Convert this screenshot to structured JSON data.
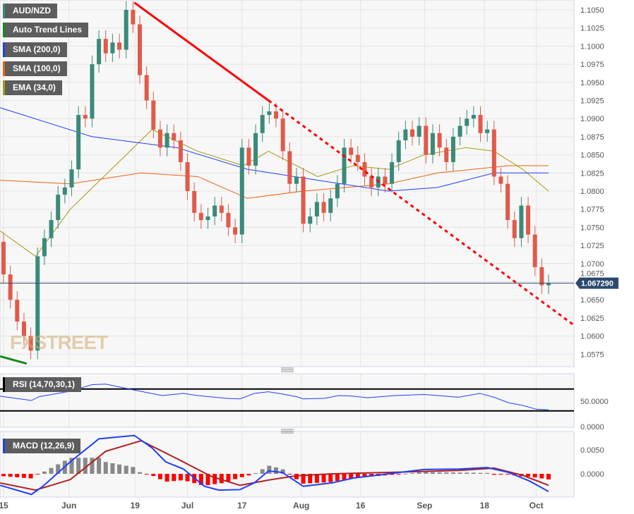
{
  "legend": {
    "symbol": {
      "label": "AUD/NZD",
      "color": "#3a8a7a"
    },
    "trend": {
      "label": "Auto Trend Lines",
      "color": "#1a8a1a"
    },
    "sma200": {
      "label": "SMA (200,0)",
      "color": "#1f3fff"
    },
    "sma100": {
      "label": "SMA (100,0)",
      "color": "#f06010"
    },
    "ema34": {
      "label": "EMA (34,0)",
      "color": "#a89a10"
    },
    "rsi": {
      "label": "RSI (14,70,30,1)",
      "color": "#000000"
    },
    "macd": {
      "label": "MACD (12,26,9)",
      "color": "#1f3fff"
    }
  },
  "watermark": "FXSTREET",
  "chart_data": {
    "type": "candlestick",
    "symbol": "AUD/NZD",
    "current_price": "1.067290",
    "current_value": 1.06729,
    "price_ticks": [
      "1.1050",
      "1.1025",
      "1.1000",
      "1.0975",
      "1.0950",
      "1.0925",
      "1.0900",
      "1.0875",
      "1.0850",
      "1.0825",
      "1.0800",
      "1.0775",
      "1.0750",
      "1.0725",
      "1.0700",
      "1.0675",
      "1.0650",
      "1.0625",
      "1.0600",
      "1.0575"
    ],
    "ylim": [
      1.0555,
      1.1065
    ],
    "x_labels": [
      {
        "t": "15",
        "i": 0
      },
      {
        "t": "Jun",
        "i": 9.6
      },
      {
        "t": "19",
        "i": 19.3
      },
      {
        "t": "Jul",
        "i": 27
      },
      {
        "t": "17",
        "i": 35
      },
      {
        "t": "Aug",
        "i": 43.7
      },
      {
        "t": "16",
        "i": 52.4
      },
      {
        "t": "Sep",
        "i": 61.8
      },
      {
        "t": "18",
        "i": 70.6
      },
      {
        "t": "Oct",
        "i": 78.2
      }
    ],
    "first_open": 1.073,
    "closes": [
      1.0685,
      1.065,
      1.062,
      1.06,
      1.058,
      1.071,
      1.0735,
      1.076,
      1.0795,
      1.0805,
      1.083,
      1.0905,
      1.09,
      1.0975,
      1.101,
      1.099,
      1.1005,
      1.0995,
      1.105,
      1.103,
      1.096,
      1.0925,
      1.0885,
      1.086,
      1.088,
      1.087,
      1.084,
      1.08,
      1.077,
      1.076,
      1.0765,
      1.078,
      1.077,
      1.075,
      1.074,
      1.086,
      1.0835,
      1.088,
      1.0905,
      1.091,
      1.09,
      1.0855,
      1.081,
      1.082,
      1.0755,
      1.0765,
      1.0785,
      1.077,
      1.079,
      1.081,
      1.086,
      1.085,
      1.084,
      1.082,
      1.0805,
      1.082,
      1.081,
      1.084,
      1.087,
      1.0885,
      1.0875,
      1.089,
      1.085,
      1.088,
      1.086,
      1.084,
      1.0875,
      1.089,
      1.09,
      1.0905,
      1.088,
      1.0885,
      1.082,
      1.081,
      1.076,
      1.0735,
      1.078,
      1.074,
      1.0695,
      1.067,
      1.0673
    ],
    "sma200": [
      [
        -0.5,
        1.0915
      ],
      [
        13,
        1.0875
      ],
      [
        25.4,
        1.086
      ],
      [
        35.8,
        1.083
      ],
      [
        46.1,
        1.0815
      ],
      [
        56.5,
        1.08
      ],
      [
        63.7,
        1.0805
      ],
      [
        72,
        1.0825
      ],
      [
        80,
        1.0825
      ]
    ],
    "sma100": [
      [
        -0.5,
        1.0815
      ],
      [
        9.8,
        1.081
      ],
      [
        20.2,
        1.0825
      ],
      [
        28.5,
        1.082
      ],
      [
        35.8,
        1.079
      ],
      [
        44,
        1.08
      ],
      [
        56.5,
        1.081
      ],
      [
        63.7,
        1.0825
      ],
      [
        74.1,
        1.0835
      ],
      [
        80,
        1.0835
      ]
    ],
    "ema34": [
      [
        -0.5,
        1.0745
      ],
      [
        4.7,
        1.071
      ],
      [
        9.8,
        1.0775
      ],
      [
        18,
        1.085
      ],
      [
        21.8,
        1.0885
      ],
      [
        28.5,
        1.0855
      ],
      [
        35.2,
        1.0835
      ],
      [
        38.9,
        1.0855
      ],
      [
        46.1,
        1.082
      ],
      [
        51.3,
        1.0835
      ],
      [
        56.5,
        1.083
      ],
      [
        61.7,
        1.085
      ],
      [
        67.9,
        1.086
      ],
      [
        72,
        1.0855
      ],
      [
        76.2,
        1.083
      ],
      [
        80,
        1.08
      ]
    ],
    "trendlines": [
      {
        "style": "solid",
        "color": "#ff0000",
        "from": [
          19.2,
          1.106
        ],
        "to": [
          38.9,
          1.0925
        ]
      },
      {
        "style": "dotted",
        "color": "#ff0000",
        "from": [
          38.9,
          1.0925
        ],
        "to": [
          83.8,
          1.0615
        ]
      },
      {
        "style": "solid",
        "color": "#1a8a1a",
        "from": [
          -0.5,
          1.0572
        ],
        "to": [
          3.4,
          1.0562
        ]
      }
    ],
    "rsi": {
      "ticks": [
        "50.0000",
        "0.0000"
      ],
      "upper": 70,
      "lower": 30,
      "values": [
        [
          -0.5,
          57
        ],
        [
          4.1,
          49
        ],
        [
          5.2,
          56
        ],
        [
          9.8,
          66
        ],
        [
          13,
          78
        ],
        [
          15,
          79
        ],
        [
          19.2,
          68
        ],
        [
          23.3,
          58
        ],
        [
          26.4,
          62
        ],
        [
          28.5,
          58
        ],
        [
          32.6,
          53
        ],
        [
          34.7,
          52
        ],
        [
          36.8,
          62
        ],
        [
          38.9,
          65
        ],
        [
          40.9,
          61
        ],
        [
          43,
          56
        ],
        [
          44,
          52
        ],
        [
          47.2,
          53
        ],
        [
          49.2,
          58
        ],
        [
          51.3,
          57
        ],
        [
          53.4,
          54
        ],
        [
          57.5,
          58
        ],
        [
          61.7,
          60
        ],
        [
          66.8,
          55
        ],
        [
          69.9,
          62
        ],
        [
          72,
          55
        ],
        [
          74.1,
          45
        ],
        [
          76.2,
          40
        ],
        [
          78.2,
          33
        ],
        [
          80,
          32
        ]
      ]
    },
    "macd": {
      "ticks": [
        "0.0050",
        "0.0000"
      ],
      "macd": [
        [
          -0.5,
          -0.0024
        ],
        [
          4.1,
          -0.0043
        ],
        [
          5.7,
          -0.0027
        ],
        [
          9.8,
          0.0025
        ],
        [
          14,
          0.0073
        ],
        [
          19.2,
          0.008
        ],
        [
          21.8,
          0.0054
        ],
        [
          23.8,
          0.0025
        ],
        [
          26.4,
          0.001
        ],
        [
          29.5,
          -0.0026
        ],
        [
          31.6,
          -0.0034
        ],
        [
          34.7,
          -0.0033
        ],
        [
          36.8,
          -0.0019
        ],
        [
          38.9,
          0.0006
        ],
        [
          40.9,
          0.0003
        ],
        [
          44,
          -0.0026
        ],
        [
          48.2,
          -0.0019
        ],
        [
          51.3,
          -0.0009
        ],
        [
          56.5,
          0.0
        ],
        [
          61.7,
          0.0009
        ],
        [
          66.8,
          0.001
        ],
        [
          71,
          0.0013
        ],
        [
          74.1,
          0.0003
        ],
        [
          77.2,
          -0.0015
        ],
        [
          80,
          -0.0037
        ]
      ],
      "signal": [
        [
          -0.5,
          -0.0019
        ],
        [
          4.7,
          -0.0034
        ],
        [
          9.8,
          -0.0012
        ],
        [
          15,
          0.0047
        ],
        [
          20.2,
          0.0069
        ],
        [
          25.4,
          0.0032
        ],
        [
          30.6,
          -0.0006
        ],
        [
          34.7,
          -0.0024
        ],
        [
          38.9,
          -0.0013
        ],
        [
          43,
          -0.0004
        ],
        [
          48.2,
          0.0
        ],
        [
          56.5,
          0.0003
        ],
        [
          66.8,
          0.0007
        ],
        [
          72,
          0.0012
        ],
        [
          76.2,
          -0.0003
        ],
        [
          80,
          -0.0024
        ]
      ]
    }
  }
}
